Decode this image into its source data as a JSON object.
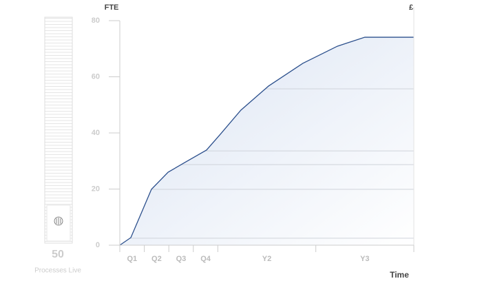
{
  "chart_data": {
    "type": "area",
    "y_label": "FTE",
    "y2_label": "£",
    "x_label": "Time",
    "categories": [
      "Q1",
      "Q2",
      "Q3",
      "Q4",
      "Y2",
      "Y3"
    ],
    "xticks": [
      0,
      1,
      2,
      3,
      4,
      8,
      12
    ],
    "xlim": [
      0,
      12
    ],
    "x": [
      0,
      0.45,
      0.87,
      1.29,
      1.97,
      2.7,
      3.54,
      4.1,
      4.94,
      6.07,
      7.47,
      8.88,
      10,
      12
    ],
    "values": [
      0,
      2.7,
      11.3,
      19.9,
      26,
      29.7,
      33.9,
      39.5,
      48.1,
      56.7,
      64.8,
      70.9,
      74.1,
      74.1
    ],
    "ylim": [
      0,
      80
    ],
    "yticks": [
      0,
      20,
      40,
      60,
      80
    ],
    "color": "#2b4f8c",
    "reference_lines": [
      2.5,
      19.9,
      28.7,
      33.6,
      55.7
    ]
  },
  "sidebar": {
    "count": 50,
    "label": "Processes Live"
  }
}
